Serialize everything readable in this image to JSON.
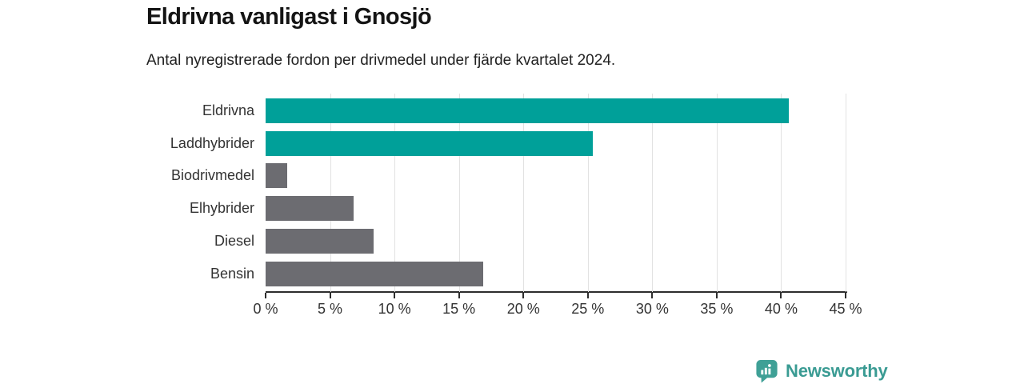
{
  "header": {
    "title": "Eldrivna vanligast i Gnosjö",
    "subtitle": "Antal nyregistrerade fordon per drivmedel under fjärde kvartalet 2024."
  },
  "chart_data": {
    "type": "bar",
    "orientation": "horizontal",
    "title": "Eldrivna vanligast i Gnosjö",
    "subtitle": "Antal nyregistrerade fordon per drivmedel under fjärde kvartalet 2024.",
    "categories": [
      "Eldrivna",
      "Laddhybrider",
      "Biodrivmedel",
      "Elhybrider",
      "Diesel",
      "Bensin"
    ],
    "values": [
      40.6,
      25.4,
      1.7,
      6.8,
      8.4,
      16.9
    ],
    "bar_colors": [
      "#00a099",
      "#00a099",
      "#6c6c71",
      "#6c6c71",
      "#6c6c71",
      "#6c6c71"
    ],
    "xlabel": "",
    "ylabel": "",
    "xlim": [
      0,
      45
    ],
    "x_tick_values": [
      0,
      5,
      10,
      15,
      20,
      25,
      30,
      35,
      40,
      45
    ],
    "x_tick_labels": [
      "0 %",
      "5 %",
      "10 %",
      "15 %",
      "20 %",
      "25 %",
      "30 %",
      "35 %",
      "40 %",
      "45 %"
    ],
    "grid": "vertical-only",
    "legend": false
  },
  "colors": {
    "accent_teal": "#00a099",
    "bar_gray": "#6c6c71",
    "gridline": "#e2e2e2",
    "axis": "#2d2d2d",
    "logo_teal": "#3fa096",
    "logo_text_teal": "#3a9b93"
  },
  "branding": {
    "wordmark": "Newsworthy"
  }
}
